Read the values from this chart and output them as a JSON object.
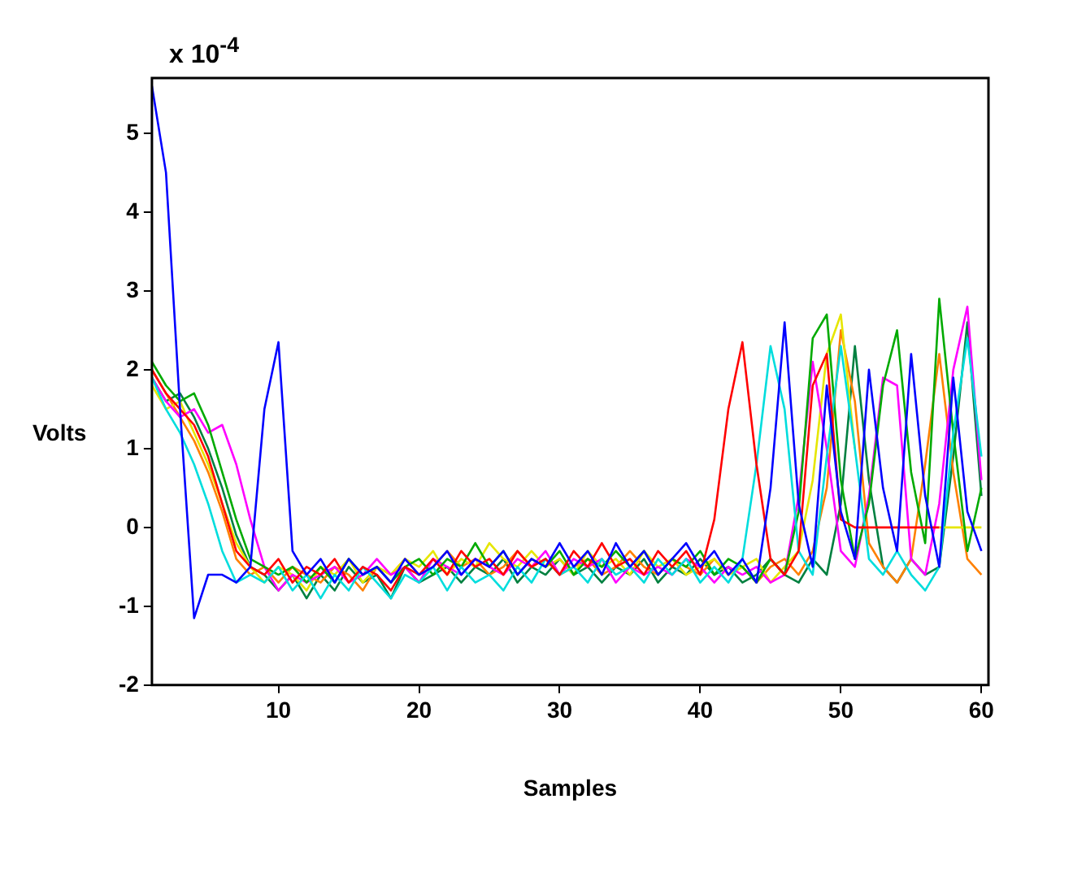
{
  "chart_data": {
    "type": "line",
    "xlabel": "Samples",
    "ylabel": "Volts",
    "annotations": [
      "x 10$^{-4}$"
    ],
    "marker": "none",
    "xlim": [
      1,
      60.5
    ],
    "xticks": [
      10,
      20,
      30,
      40,
      50,
      60
    ],
    "ylim": [
      -2,
      5.7
    ],
    "yticks": [
      -2,
      -1,
      0,
      1,
      2,
      3,
      4,
      5
    ],
    "x": [
      1,
      2,
      3,
      4,
      5,
      6,
      7,
      8,
      9,
      10,
      11,
      12,
      13,
      14,
      15,
      16,
      17,
      18,
      19,
      20,
      21,
      22,
      23,
      24,
      25,
      26,
      27,
      28,
      29,
      30,
      31,
      32,
      33,
      34,
      35,
      36,
      37,
      38,
      39,
      40,
      41,
      42,
      43,
      44,
      45,
      46,
      47,
      48,
      49,
      50,
      51,
      52,
      53,
      54,
      55,
      56,
      57,
      58,
      59,
      60
    ],
    "series": [
      {
        "color": "#0000ff",
        "values": [
          5.6,
          4.5,
          1.5,
          -1.15,
          -0.6,
          -0.6,
          -0.7,
          -0.5,
          1.5,
          2.35,
          -0.3,
          -0.6,
          -0.4,
          -0.7,
          -0.4,
          -0.6,
          -0.5,
          -0.7,
          -0.4,
          -0.6,
          -0.5,
          -0.3,
          -0.6,
          -0.4,
          -0.5,
          -0.3,
          -0.6,
          -0.4,
          -0.5,
          -0.2,
          -0.5,
          -0.3,
          -0.6,
          -0.2,
          -0.5,
          -0.3,
          -0.6,
          -0.4,
          -0.2,
          -0.5,
          -0.3,
          -0.6,
          -0.4,
          -0.7,
          0.5,
          2.6,
          0.3,
          -0.5,
          1.8,
          0.2,
          -0.4,
          2.0,
          0.5,
          -0.3,
          2.2,
          0.4,
          -0.5,
          1.9,
          0.2,
          -0.3
        ]
      },
      {
        "color": "#ff0000",
        "values": [
          2.0,
          1.7,
          1.5,
          1.3,
          0.9,
          0.3,
          -0.3,
          -0.5,
          -0.6,
          -0.4,
          -0.7,
          -0.5,
          -0.6,
          -0.4,
          -0.7,
          -0.5,
          -0.6,
          -0.8,
          -0.5,
          -0.6,
          -0.4,
          -0.6,
          -0.3,
          -0.5,
          -0.4,
          -0.6,
          -0.3,
          -0.5,
          -0.4,
          -0.6,
          -0.3,
          -0.5,
          -0.2,
          -0.5,
          -0.4,
          -0.6,
          -0.3,
          -0.5,
          -0.3,
          -0.6,
          0.1,
          1.5,
          2.35,
          0.8,
          -0.4,
          -0.6,
          -0.3,
          1.8,
          2.2,
          0.1,
          0,
          0,
          0,
          0,
          0,
          0,
          0,
          null,
          null,
          null
        ]
      },
      {
        "color": "#00dddd",
        "values": [
          1.9,
          1.5,
          1.2,
          0.8,
          0.3,
          -0.3,
          -0.7,
          -0.6,
          -0.7,
          -0.5,
          -0.8,
          -0.6,
          -0.9,
          -0.6,
          -0.8,
          -0.5,
          -0.7,
          -0.9,
          -0.6,
          -0.7,
          -0.5,
          -0.8,
          -0.5,
          -0.7,
          -0.6,
          -0.8,
          -0.5,
          -0.7,
          -0.4,
          -0.6,
          -0.5,
          -0.7,
          -0.4,
          -0.6,
          -0.5,
          -0.7,
          -0.4,
          -0.6,
          -0.4,
          -0.7,
          -0.5,
          -0.7,
          -0.4,
          0.8,
          2.3,
          1.5,
          -0.3,
          -0.6,
          0.9,
          2.3,
          1.0,
          -0.4,
          -0.6,
          -0.3,
          -0.6,
          -0.8,
          -0.5,
          1.2,
          2.4,
          0.9
        ]
      },
      {
        "color": "#00aa00",
        "values": [
          2.1,
          1.8,
          1.6,
          1.7,
          1.3,
          0.7,
          0.1,
          -0.4,
          -0.5,
          -0.6,
          -0.5,
          -0.7,
          -0.5,
          -0.7,
          -0.4,
          -0.6,
          -0.5,
          -0.7,
          -0.5,
          -0.4,
          -0.6,
          -0.4,
          -0.5,
          -0.2,
          -0.5,
          -0.3,
          -0.6,
          -0.4,
          -0.5,
          -0.3,
          -0.6,
          -0.4,
          -0.5,
          -0.3,
          -0.5,
          -0.3,
          -0.6,
          -0.4,
          -0.5,
          -0.3,
          -0.6,
          -0.4,
          -0.5,
          -0.7,
          -0.4,
          -0.6,
          0.2,
          2.4,
          2.7,
          0.6,
          -0.4,
          0.3,
          1.8,
          2.5,
          0.7,
          -0.2,
          2.9,
          1.2,
          -0.3,
          0.5
        ]
      },
      {
        "color": "#ff00ff",
        "values": [
          1.9,
          1.6,
          1.4,
          1.5,
          1.2,
          1.3,
          0.8,
          0.1,
          -0.5,
          -0.8,
          -0.6,
          -0.7,
          -0.6,
          -0.5,
          -0.7,
          -0.6,
          -0.4,
          -0.6,
          -0.5,
          -0.7,
          -0.4,
          -0.5,
          -0.6,
          -0.4,
          -0.5,
          -0.6,
          -0.4,
          -0.5,
          -0.3,
          -0.6,
          -0.4,
          -0.5,
          -0.4,
          -0.7,
          -0.5,
          -0.6,
          -0.5,
          -0.6,
          -0.4,
          -0.5,
          -0.7,
          -0.5,
          -0.6,
          -0.5,
          -0.7,
          -0.6,
          0.4,
          2.1,
          1.0,
          -0.3,
          -0.5,
          0.4,
          1.9,
          1.8,
          -0.4,
          -0.6,
          0.3,
          2.0,
          2.8,
          0.6
        ]
      },
      {
        "color": "#e6e600",
        "values": [
          1.8,
          1.5,
          1.6,
          1.2,
          0.8,
          0.3,
          -0.2,
          -0.5,
          -0.7,
          -0.5,
          -0.6,
          -0.8,
          -0.5,
          -0.6,
          -0.4,
          -0.7,
          -0.5,
          -0.6,
          -0.4,
          -0.5,
          -0.3,
          -0.6,
          -0.4,
          -0.5,
          -0.2,
          -0.4,
          -0.5,
          -0.3,
          -0.5,
          -0.4,
          -0.6,
          -0.3,
          -0.5,
          -0.4,
          -0.6,
          -0.3,
          -0.5,
          -0.4,
          -0.6,
          -0.5,
          -0.4,
          -0.6,
          -0.5,
          -0.4,
          -0.7,
          -0.5,
          -0.3,
          0.6,
          2.2,
          2.7,
          1.0,
          null,
          null,
          null,
          null,
          null,
          0,
          0,
          0,
          0
        ]
      },
      {
        "color": "#ff8000",
        "values": [
          2.0,
          1.7,
          1.4,
          1.1,
          0.7,
          0.2,
          -0.4,
          -0.6,
          -0.5,
          -0.7,
          -0.5,
          -0.6,
          -0.7,
          -0.5,
          -0.6,
          -0.8,
          -0.5,
          -0.6,
          -0.4,
          -0.6,
          -0.5,
          -0.3,
          -0.5,
          -0.4,
          -0.6,
          -0.5,
          -0.3,
          -0.5,
          -0.4,
          -0.6,
          -0.5,
          -0.4,
          -0.6,
          -0.5,
          -0.3,
          -0.5,
          -0.6,
          -0.4,
          -0.5,
          -0.6,
          -0.4,
          -0.6,
          -0.5,
          -0.7,
          -0.5,
          -0.4,
          -0.6,
          -0.3,
          0.5,
          2.5,
          1.6,
          -0.2,
          -0.5,
          -0.7,
          -0.4,
          0.8,
          2.2,
          0.7,
          -0.4,
          -0.6
        ]
      },
      {
        "color": "#008040",
        "values": [
          1.9,
          1.6,
          1.7,
          1.4,
          1.0,
          0.5,
          -0.1,
          -0.5,
          -0.6,
          -0.8,
          -0.6,
          -0.9,
          -0.6,
          -0.8,
          -0.5,
          -0.7,
          -0.6,
          -0.9,
          -0.5,
          -0.7,
          -0.6,
          -0.5,
          -0.7,
          -0.5,
          -0.6,
          -0.4,
          -0.7,
          -0.5,
          -0.6,
          -0.4,
          -0.6,
          -0.5,
          -0.7,
          -0.5,
          -0.6,
          -0.4,
          -0.7,
          -0.5,
          -0.6,
          -0.4,
          -0.6,
          -0.5,
          -0.7,
          -0.6,
          -0.4,
          -0.6,
          -0.7,
          -0.4,
          -0.6,
          0.3,
          2.3,
          0.6,
          -0.5,
          -0.7,
          -0.4,
          -0.6,
          -0.5,
          0.9,
          2.6,
          0.4
        ]
      }
    ]
  }
}
